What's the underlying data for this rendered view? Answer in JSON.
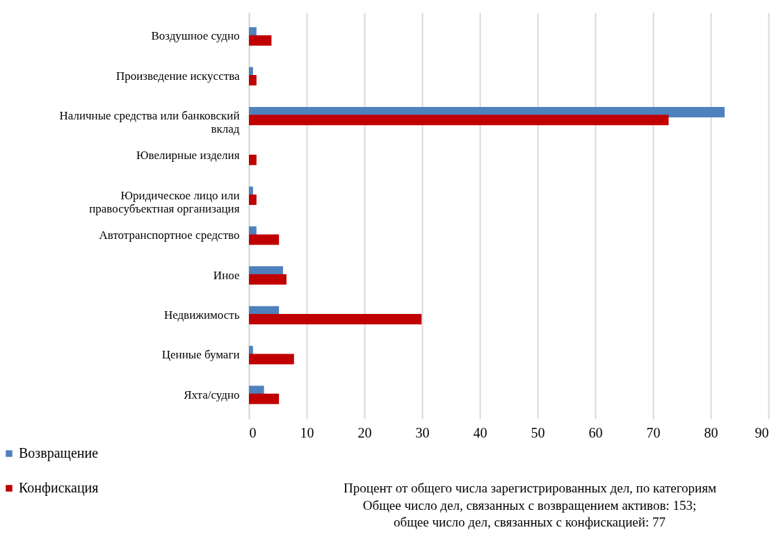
{
  "chart_data": {
    "type": "bar",
    "orientation": "horizontal",
    "categories": [
      "Воздушное судно",
      "Произведение искусства",
      "Наличные средства или банковский вклад",
      "Ювелирные изделия",
      "Юридическое лицо или правосубъектная организация",
      "Автотранспортное средство",
      "Иное",
      "Недвижимость",
      "Ценные бумаги",
      "Яхта/судно"
    ],
    "series": [
      {
        "name": "Возвращение",
        "color": "#4f81bd",
        "values": [
          1.3,
          0.7,
          82.4,
          0,
          0.7,
          1.3,
          5.9,
          5.2,
          0.7,
          2.6
        ]
      },
      {
        "name": "Конфискация",
        "color": "#c00000",
        "values": [
          3.9,
          1.3,
          72.7,
          1.3,
          1.3,
          5.2,
          6.5,
          29.9,
          7.8,
          5.2
        ]
      }
    ],
    "xlabel": "Процент от общего числа зарегистрированных дел, по категориям",
    "annotations": [
      "Общее число дел, связанных с возвращением активов: 153;",
      "общее число дел, связанных с конфискацией: 77"
    ],
    "xlim": [
      0,
      90
    ],
    "xticks": [
      0,
      10,
      20,
      30,
      40,
      50,
      60,
      70,
      80,
      90
    ],
    "grid": "x",
    "legend": "bottom left"
  }
}
